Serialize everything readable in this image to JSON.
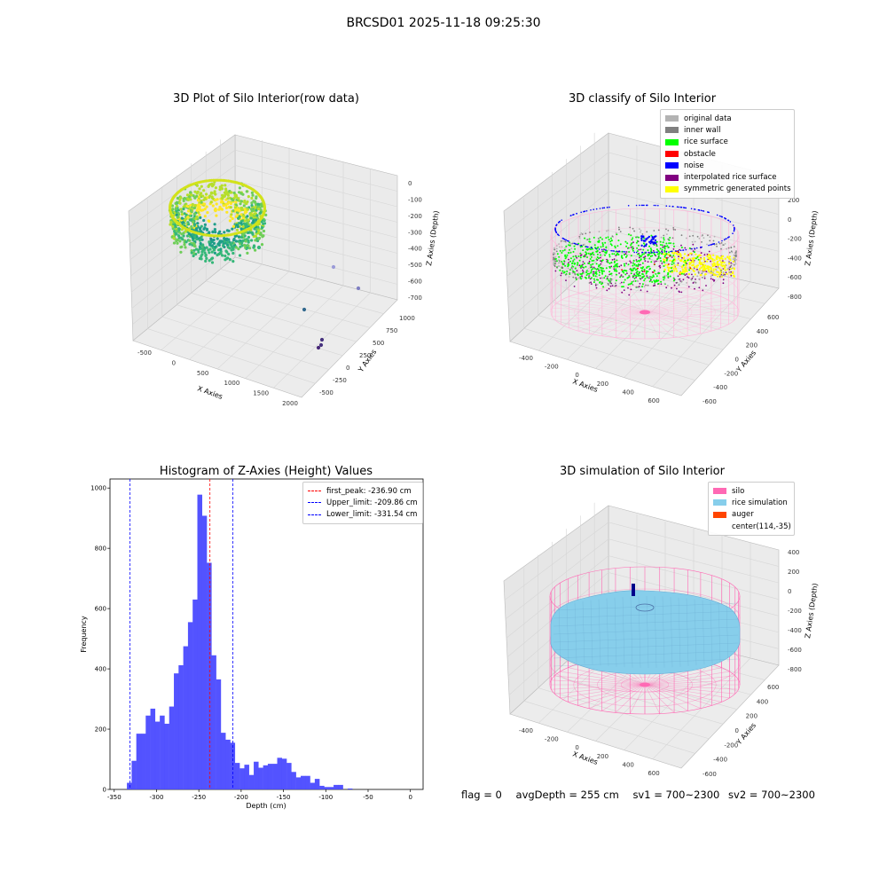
{
  "suptitle": "BRCSD01 2025-11-18 09:25:30",
  "panels": {
    "raw": {
      "title": "3D Plot of Silo Interior(row data)",
      "xlabel": "X Axies",
      "ylabel": "Y Axies",
      "zlabel": "Z Axies (Depth)",
      "xticks": [
        "-500",
        "0",
        "500",
        "1000",
        "1500",
        "2000"
      ],
      "yticks": [
        "-500",
        "-250",
        "0",
        "250",
        "500",
        "750",
        "1000"
      ],
      "zticks": [
        "0",
        "-100",
        "-200",
        "-300",
        "-400",
        "-500",
        "-600",
        "-700"
      ]
    },
    "classify": {
      "title": "3D classify of Silo Interior",
      "xlabel": "X Axies",
      "ylabel": "Y Axies",
      "zlabel": "Z Axies (Depth)",
      "xticks": [
        "-400",
        "-200",
        "0",
        "200",
        "400",
        "600"
      ],
      "yticks": [
        "-600",
        "-400",
        "-200",
        "0",
        "200",
        "400",
        "600"
      ],
      "zticks": [
        "200",
        "0",
        "-200",
        "-400",
        "-600",
        "-800"
      ],
      "legend": [
        {
          "label": "original data",
          "color": "#b3b3b3"
        },
        {
          "label": "inner wall",
          "color": "#808080"
        },
        {
          "label": "rice surface",
          "color": "#00ff00"
        },
        {
          "label": "obstacle",
          "color": "#ff0000"
        },
        {
          "label": "noise",
          "color": "#0000ff"
        },
        {
          "label": "interpolated rice surface",
          "color": "#800080"
        },
        {
          "label": "symmetric generated points",
          "color": "#ffff00"
        }
      ]
    },
    "histogram": {
      "title": "Histogram of Z-Axies (Height) Values",
      "xlabel": "Depth (cm)",
      "ylabel": "Frequency"
    },
    "simulation": {
      "title": "3D simulation of Silo Interior",
      "xlabel": "X Axies",
      "ylabel": "Y Axies",
      "zlabel": "Z Axies (Depth)",
      "xticks": [
        "-400",
        "-200",
        "0",
        "200",
        "400",
        "600"
      ],
      "yticks": [
        "-600",
        "-400",
        "-200",
        "0",
        "200",
        "400",
        "600"
      ],
      "zticks": [
        "400",
        "200",
        "0",
        "-200",
        "-400",
        "-600",
        "-800"
      ],
      "legend": [
        {
          "label": "silo",
          "color": "#ff69b4"
        },
        {
          "label": "rice simulation",
          "color": "#87ceeb"
        },
        {
          "label": "auger",
          "color": "#ff4500"
        },
        {
          "label": "center(114,-35)",
          "color": ""
        }
      ]
    }
  },
  "status": {
    "flag": "flag = 0",
    "avg_depth": "avgDepth = 255 cm",
    "sv1": "sv1 = 700~2300",
    "sv2": "sv2 = 700~2300"
  },
  "chart_data": [
    {
      "type": "histogram",
      "title": "Histogram of Z-Axies (Height) Values",
      "xlabel": "Depth (cm)",
      "ylabel": "Frequency",
      "xlim": [
        -355,
        15
      ],
      "ylim": [
        0,
        1030
      ],
      "xticks": [
        -350,
        -300,
        -250,
        -200,
        -150,
        -100,
        -50,
        0
      ],
      "yticks": [
        0,
        200,
        400,
        600,
        800,
        1000
      ],
      "bin_start": -335,
      "bin_width": 5.55,
      "counts": [
        22,
        95,
        185,
        185,
        245,
        268,
        225,
        245,
        218,
        275,
        385,
        412,
        475,
        555,
        630,
        978,
        908,
        752,
        445,
        365,
        188,
        165,
        155,
        88,
        70,
        82,
        48,
        92,
        72,
        80,
        85,
        85,
        105,
        102,
        88,
        58,
        40,
        45,
        45,
        22,
        35,
        12,
        8,
        8,
        15,
        15,
        0,
        3
      ],
      "lines": [
        {
          "label": "first_peak: -236.90 cm",
          "x": -236.9,
          "color": "#ff0000"
        },
        {
          "label": "Upper_limit: -209.86 cm",
          "x": -209.86,
          "color": "#0000ff"
        },
        {
          "label": "Lower_limit: -331.54 cm",
          "x": -331.54,
          "color": "#0000ff"
        }
      ],
      "bar_color": "#4a4aff",
      "legend_position": "upper right"
    },
    {
      "type": "scatter3d",
      "title": "3D Plot of Silo Interior(row data)",
      "xlabel": "X Axies",
      "ylabel": "Y Axies",
      "zlabel": "Z Axies (Depth)",
      "xlim": [
        -600,
        2100
      ],
      "ylim": [
        -550,
        1100
      ],
      "zlim": [
        -750,
        50
      ],
      "colormap": "viridis"
    },
    {
      "type": "scatter3d",
      "title": "3D classify of Silo Interior",
      "xlim": [
        -500,
        700
      ],
      "ylim": [
        -650,
        650
      ],
      "zlim": [
        -900,
        250
      ]
    },
    {
      "type": "surface3d",
      "title": "3D simulation of Silo Interior",
      "xlim": [
        -500,
        700
      ],
      "ylim": [
        -650,
        650
      ],
      "zlim": [
        -900,
        450
      ]
    }
  ]
}
